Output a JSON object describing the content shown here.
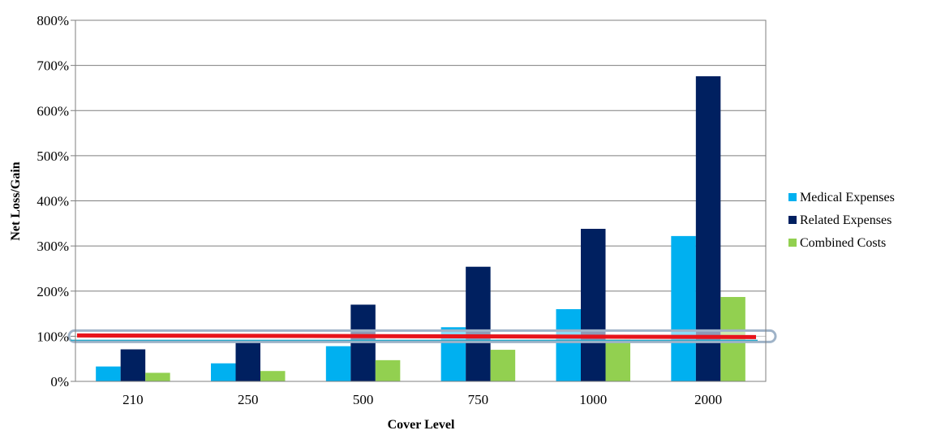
{
  "chart_data": {
    "type": "bar",
    "title": "",
    "xlabel": "Cover Level",
    "ylabel": "Net Loss/Gain",
    "categories": [
      "210",
      "250",
      "500",
      "750",
      "1000",
      "2000"
    ],
    "series": [
      {
        "name": "Medical Expenses",
        "color": "#00b0f0",
        "values": [
          33,
          40,
          78,
          120,
          160,
          322
        ]
      },
      {
        "name": "Related Expenses",
        "color": "#002060",
        "values": [
          71,
          88,
          170,
          254,
          338,
          676
        ]
      },
      {
        "name": "Combined Costs",
        "color": "#92d050",
        "values": [
          19,
          23,
          47,
          70,
          93,
          187
        ]
      }
    ],
    "ylim": [
      0,
      800
    ],
    "yticks": [
      0,
      100,
      200,
      300,
      400,
      500,
      600,
      700,
      800
    ],
    "ytick_labels": [
      "0%",
      "100%",
      "200%",
      "300%",
      "400%",
      "500%",
      "600%",
      "700%",
      "800%"
    ],
    "reference_line": {
      "value": 100,
      "color": "#e8141b",
      "band_color": "#9fb3c8"
    },
    "grid": true,
    "legend_position": "right"
  }
}
